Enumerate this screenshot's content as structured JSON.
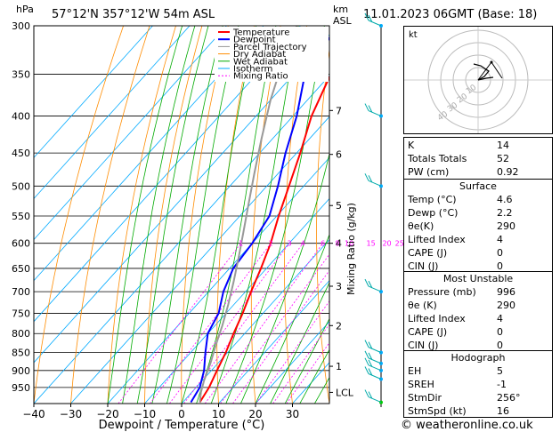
{
  "header": {
    "pressure_unit": "hPa",
    "location": "57°12'N  357°12'W  54m  ASL",
    "height_unit_top": "km",
    "height_unit_bottom": "ASL",
    "datetime": "11.01.2023  06GMT  (Base: 18)"
  },
  "footer": {
    "copyright": "© weatheronline.co.uk"
  },
  "legend": [
    {
      "label": "Temperature",
      "color": "#ff0000"
    },
    {
      "label": "Dewpoint",
      "color": "#0000ff"
    },
    {
      "label": "Parcel Trajectory",
      "color": "#999999"
    },
    {
      "label": "Dry Adiabat",
      "color": "#ff8c00"
    },
    {
      "label": "Wet Adiabat",
      "color": "#00aa00"
    },
    {
      "label": "Isotherm",
      "color": "#00aaff"
    },
    {
      "label": "Mixing Ratio",
      "color": "#ff00ff"
    }
  ],
  "chart_data": {
    "type": "line",
    "xlabel": "Dewpoint / Temperature (°C)",
    "ylabel": "hPa",
    "y2label": "Mixing Ratio (g/kg)",
    "x_ticks": [
      -40,
      -30,
      -20,
      -10,
      0,
      10,
      20,
      30
    ],
    "x_tick_labels": [
      "−40",
      "−30",
      "−20",
      "−10",
      "0",
      "10",
      "20",
      "30"
    ],
    "xlim": [
      -40,
      40
    ],
    "pressure_ticks": [
      300,
      350,
      400,
      450,
      500,
      550,
      600,
      650,
      700,
      750,
      800,
      850,
      900,
      950
    ],
    "ylim": [
      1000,
      300
    ],
    "y_scale": "log",
    "height_labels": [
      {
        "label": "7",
        "p": 393
      },
      {
        "label": "6",
        "p": 452
      },
      {
        "label": "5",
        "p": 532
      },
      {
        "label": "4",
        "p": 600
      },
      {
        "label": "3",
        "p": 688
      },
      {
        "label": "2",
        "p": 780
      },
      {
        "label": "1",
        "p": 888
      },
      {
        "label": "LCL",
        "p": 965
      }
    ],
    "mixing_ratio_labels": [
      "1",
      "2",
      "3",
      "4",
      "6",
      "8",
      "10",
      "15",
      "20",
      "25"
    ],
    "mixing_ratio_values": [
      1,
      2,
      3,
      4,
      6,
      8,
      10,
      15,
      20,
      25
    ],
    "mixing_ratio_label_p": 600,
    "series": [
      {
        "name": "Temperature",
        "points": [
          [
            4.6,
            996
          ],
          [
            3.5,
            950
          ],
          [
            1.5,
            900
          ],
          [
            -0.5,
            850
          ],
          [
            -3,
            800
          ],
          [
            -5.5,
            750
          ],
          [
            -8.5,
            700
          ],
          [
            -11.5,
            650
          ],
          [
            -15,
            600
          ],
          [
            -19.5,
            550
          ],
          [
            -24,
            500
          ],
          [
            -29,
            450
          ],
          [
            -35,
            400
          ],
          [
            -40,
            350
          ],
          [
            -45,
            300
          ]
        ]
      },
      {
        "name": "Dewpoint",
        "points": [
          [
            2.2,
            996
          ],
          [
            1,
            950
          ],
          [
            -2,
            900
          ],
          [
            -6,
            850
          ],
          [
            -10,
            800
          ],
          [
            -12,
            750
          ],
          [
            -16,
            700
          ],
          [
            -19,
            650
          ],
          [
            -20,
            600
          ],
          [
            -22,
            550
          ],
          [
            -27,
            500
          ],
          [
            -33,
            450
          ],
          [
            -39,
            400
          ],
          [
            -47,
            350
          ],
          [
            -50,
            300
          ]
        ]
      },
      {
        "name": "Parcel Trajectory",
        "points": [
          [
            4.6,
            996
          ],
          [
            2.5,
            965
          ],
          [
            0.5,
            930
          ],
          [
            -2,
            880
          ],
          [
            -5,
            830
          ],
          [
            -8,
            780
          ],
          [
            -11.5,
            730
          ],
          [
            -15.5,
            680
          ],
          [
            -20,
            630
          ],
          [
            -25,
            580
          ],
          [
            -30.5,
            530
          ],
          [
            -36.5,
            480
          ],
          [
            -43,
            430
          ],
          [
            -50,
            380
          ],
          [
            -57,
            330
          ],
          [
            -61,
            300
          ]
        ]
      }
    ]
  },
  "indices": [
    {
      "label": "K",
      "value": "14"
    },
    {
      "label": "Totals Totals",
      "value": "52"
    },
    {
      "label": "PW (cm)",
      "value": "0.92"
    }
  ],
  "surface": {
    "title": "Surface",
    "rows": [
      {
        "label": "Temp (°C)",
        "value": "4.6"
      },
      {
        "label": "Dewp (°C)",
        "value": "2.2"
      },
      {
        "label": "θe(K)",
        "value": "290"
      },
      {
        "label": "Lifted Index",
        "value": "4"
      },
      {
        "label": "CAPE (J)",
        "value": "0"
      },
      {
        "label": "CIN (J)",
        "value": "0"
      }
    ]
  },
  "most_unstable": {
    "title": "Most Unstable",
    "rows": [
      {
        "label": "Pressure (mb)",
        "value": "996"
      },
      {
        "label": "θe (K)",
        "value": "290"
      },
      {
        "label": "Lifted Index",
        "value": "4"
      },
      {
        "label": "CAPE (J)",
        "value": "0"
      },
      {
        "label": "CIN (J)",
        "value": "0"
      }
    ]
  },
  "hodograph": {
    "title": "Hodograph",
    "unit_label": "kt",
    "ring_labels": [
      "10",
      "20",
      "30",
      "40"
    ],
    "rows": [
      {
        "label": "EH",
        "value": "5"
      },
      {
        "label": "SREH",
        "value": "-1"
      },
      {
        "label": "StmDir",
        "value": "256°"
      },
      {
        "label": "StmSpd (kt)",
        "value": "16"
      }
    ]
  }
}
